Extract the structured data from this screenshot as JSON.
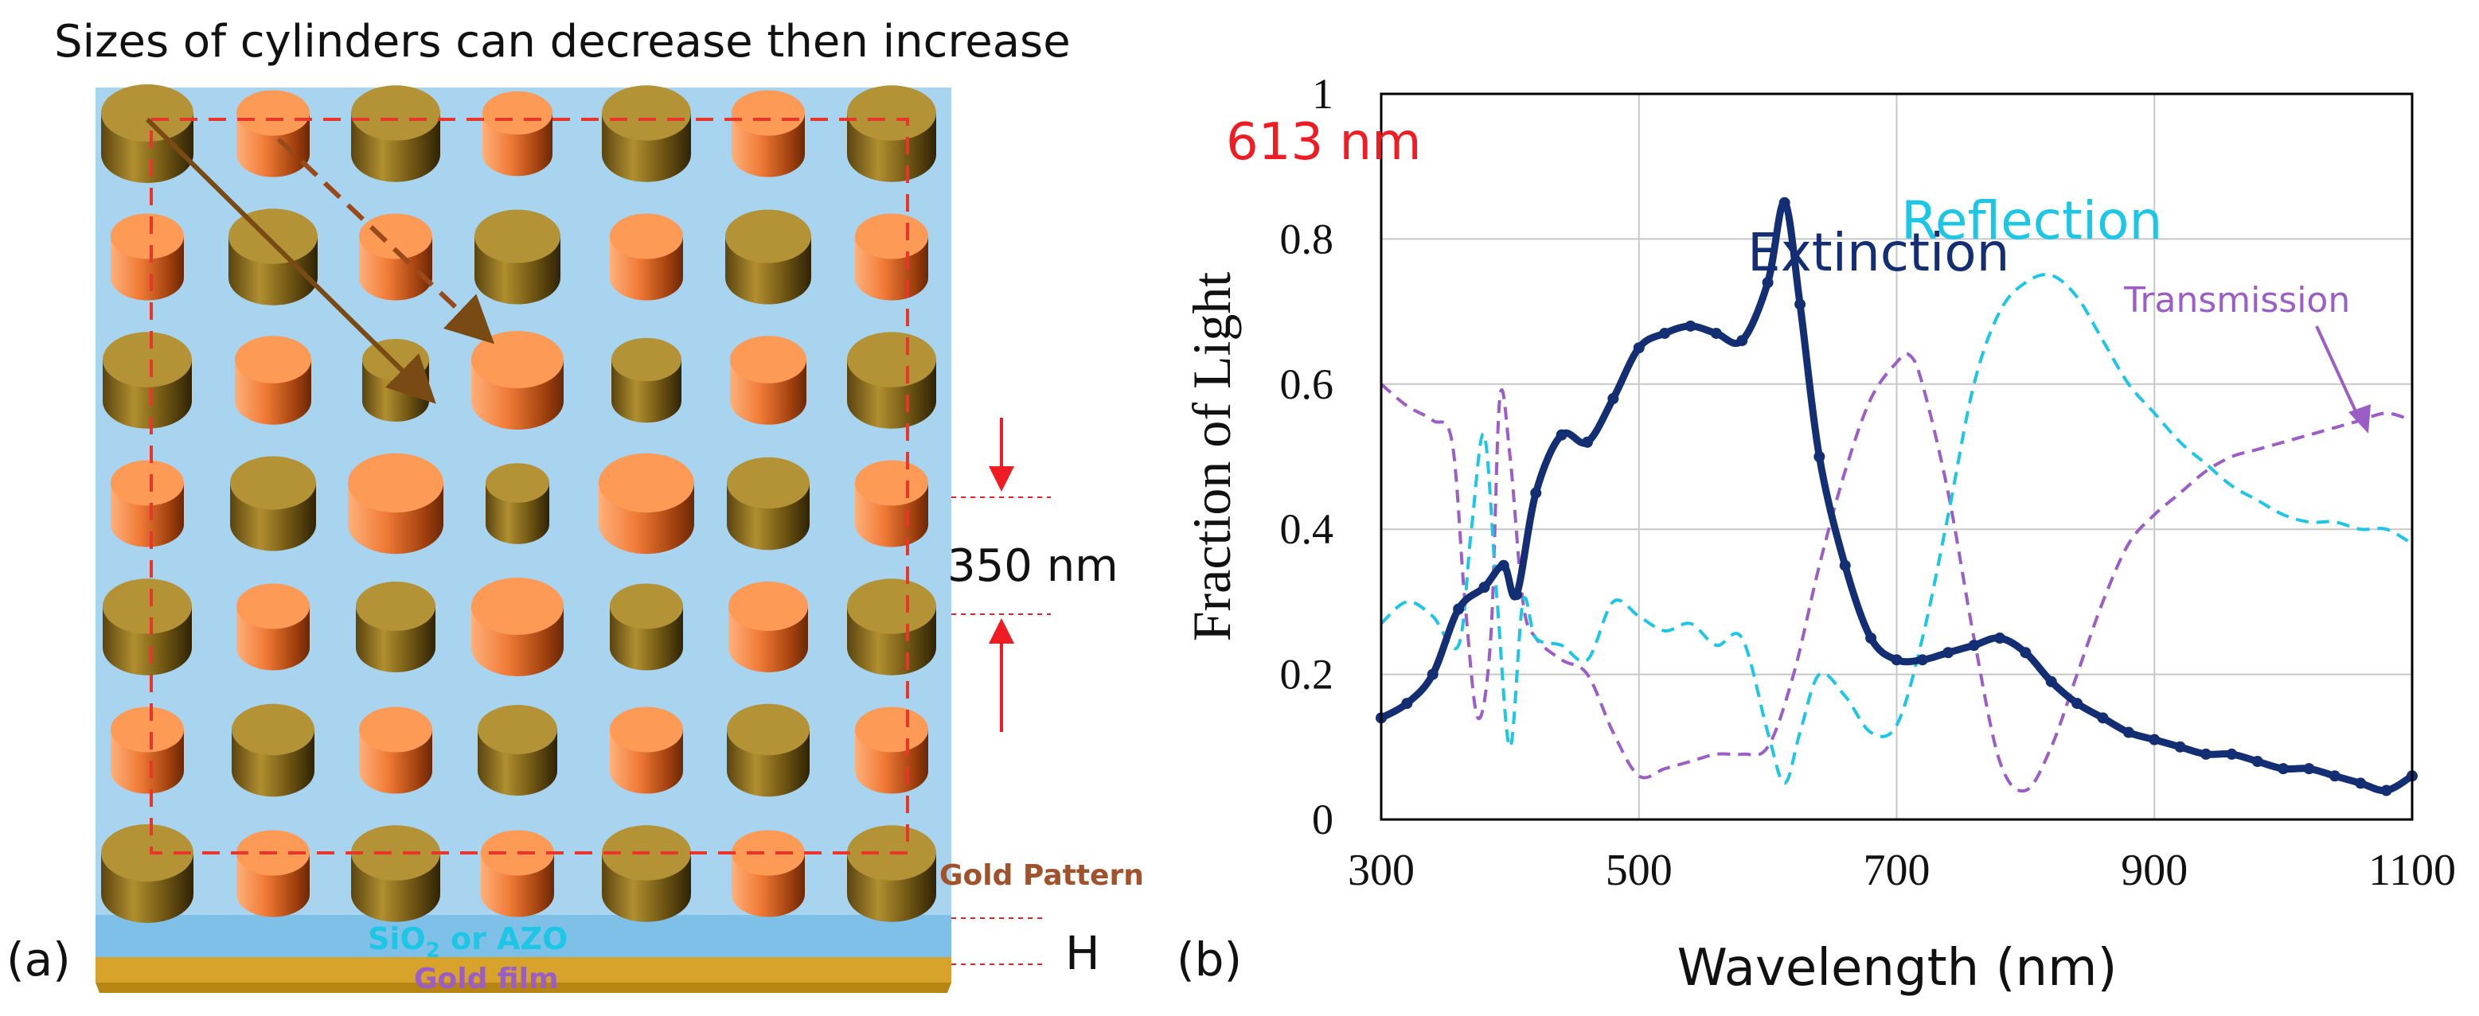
{
  "figure": {
    "panel_a": {
      "title": "Sizes of cylinders can decrease then increase",
      "label": "(a)",
      "dimension_label": "350 nm",
      "height_label": "H",
      "layers": {
        "pattern": "Gold Pattern",
        "spacer_main": "SiO",
        "spacer_sub": "2",
        "spacer_rest": " or AZO",
        "film": "Gold film"
      }
    },
    "panel_b": {
      "label": "(b)",
      "peak_annotation": "613 nm"
    }
  },
  "colors": {
    "extinction": "#132e73",
    "reflection": "#1ec6e6",
    "transmission": "#9b5ec7",
    "gold_top": "#b39336",
    "copper_top": "#fc9a56",
    "substrate": "#a8d4ef",
    "annotation_red": "#ef1c24"
  },
  "chart_data": {
    "type": "line",
    "xlabel": "Wavelength (nm)",
    "ylabel": "Fraction of Light",
    "xlim": [
      300,
      1100
    ],
    "ylim": [
      0,
      1
    ],
    "xticks": [
      "300",
      "500",
      "700",
      "900",
      "1100"
    ],
    "yticks": [
      "0",
      "0.2",
      "0.4",
      "0.6",
      "0.8",
      "1"
    ],
    "grid": true,
    "series": [
      {
        "name": "Extinction",
        "style": "solid-marker",
        "x": [
          300,
          320,
          340,
          360,
          380,
          395,
          405,
          420,
          440,
          460,
          480,
          500,
          520,
          540,
          560,
          580,
          600,
          613,
          625,
          640,
          660,
          680,
          700,
          720,
          740,
          760,
          780,
          800,
          820,
          840,
          860,
          880,
          900,
          920,
          940,
          960,
          980,
          1000,
          1020,
          1040,
          1060,
          1080,
          1100
        ],
        "y": [
          0.14,
          0.16,
          0.2,
          0.29,
          0.32,
          0.35,
          0.31,
          0.45,
          0.53,
          0.52,
          0.58,
          0.65,
          0.67,
          0.68,
          0.67,
          0.66,
          0.74,
          0.85,
          0.71,
          0.5,
          0.35,
          0.25,
          0.22,
          0.22,
          0.23,
          0.24,
          0.25,
          0.23,
          0.19,
          0.16,
          0.14,
          0.12,
          0.11,
          0.1,
          0.09,
          0.09,
          0.08,
          0.07,
          0.07,
          0.06,
          0.05,
          0.04,
          0.06
        ]
      },
      {
        "name": "Reflection",
        "style": "dashed",
        "x": [
          300,
          320,
          340,
          360,
          370,
          380,
          390,
          400,
          410,
          420,
          440,
          460,
          480,
          500,
          520,
          540,
          560,
          580,
          600,
          613,
          625,
          640,
          660,
          680,
          700,
          720,
          740,
          760,
          780,
          800,
          820,
          840,
          860,
          880,
          900,
          920,
          940,
          960,
          980,
          1000,
          1020,
          1040,
          1060,
          1080,
          1100
        ],
        "y": [
          0.27,
          0.3,
          0.28,
          0.24,
          0.4,
          0.53,
          0.3,
          0.1,
          0.3,
          0.25,
          0.24,
          0.22,
          0.3,
          0.28,
          0.26,
          0.27,
          0.24,
          0.25,
          0.12,
          0.05,
          0.12,
          0.2,
          0.17,
          0.12,
          0.13,
          0.25,
          0.42,
          0.6,
          0.7,
          0.74,
          0.75,
          0.72,
          0.66,
          0.6,
          0.56,
          0.52,
          0.49,
          0.46,
          0.44,
          0.42,
          0.41,
          0.41,
          0.4,
          0.4,
          0.38
        ]
      },
      {
        "name": "Transmission",
        "style": "dashed",
        "x": [
          300,
          320,
          340,
          355,
          365,
          375,
          385,
          392,
          400,
          410,
          420,
          440,
          460,
          480,
          500,
          520,
          540,
          560,
          580,
          600,
          620,
          640,
          660,
          680,
          700,
          710,
          720,
          740,
          760,
          780,
          800,
          820,
          840,
          860,
          880,
          900,
          920,
          940,
          960,
          980,
          1000,
          1020,
          1040,
          1060,
          1080,
          1100
        ],
        "y": [
          0.6,
          0.57,
          0.55,
          0.52,
          0.3,
          0.14,
          0.25,
          0.58,
          0.5,
          0.3,
          0.25,
          0.22,
          0.2,
          0.12,
          0.06,
          0.07,
          0.08,
          0.09,
          0.09,
          0.1,
          0.2,
          0.35,
          0.48,
          0.58,
          0.63,
          0.64,
          0.6,
          0.45,
          0.25,
          0.08,
          0.04,
          0.1,
          0.2,
          0.3,
          0.38,
          0.42,
          0.45,
          0.48,
          0.5,
          0.51,
          0.52,
          0.53,
          0.54,
          0.55,
          0.56,
          0.55
        ]
      }
    ],
    "annotations": [
      {
        "text": "613 nm",
        "x": 613,
        "y": 0.85
      },
      {
        "text": "Extinction",
        "series": "Extinction"
      },
      {
        "text": "Reflection",
        "series": "Reflection"
      },
      {
        "text": "Transmission",
        "series": "Transmission"
      }
    ]
  }
}
